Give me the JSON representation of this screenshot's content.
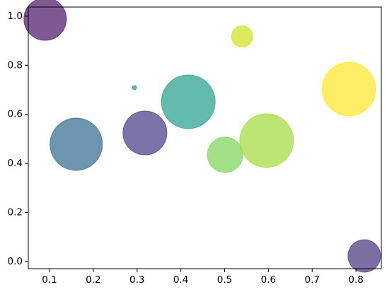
{
  "chart_data": {
    "type": "scatter",
    "x": [
      0.09,
      0.54,
      0.294,
      0.417,
      0.784,
      0.161,
      0.318,
      0.501,
      0.596,
      0.819
    ],
    "y": [
      0.988,
      0.917,
      0.709,
      0.651,
      0.703,
      0.478,
      0.524,
      0.435,
      0.493,
      0.023
    ],
    "sizes": [
      1870,
      467,
      19,
      2994,
      2994,
      2839,
      1993,
      1296,
      2994,
      1097
    ],
    "colors": [
      "#471365",
      "#cde11d",
      "#21918c",
      "#1f9e89",
      "#fde725",
      "#31688e",
      "#443983",
      "#7ad151",
      "#a0da39",
      "#46327e"
    ],
    "alpha": 0.7,
    "xlim": [
      0.0515,
      0.858
    ],
    "ylim": [
      -0.029,
      1.037
    ],
    "xticks": [
      0.1,
      0.2,
      0.3,
      0.4,
      0.5,
      0.6,
      0.7,
      0.8
    ],
    "yticks": [
      {
        "value": 0,
        "label": "0.0"
      },
      0.2,
      0.4,
      0.6,
      0.8,
      {
        "value": 1,
        "label": "1.0"
      }
    ],
    "grid": false
  }
}
